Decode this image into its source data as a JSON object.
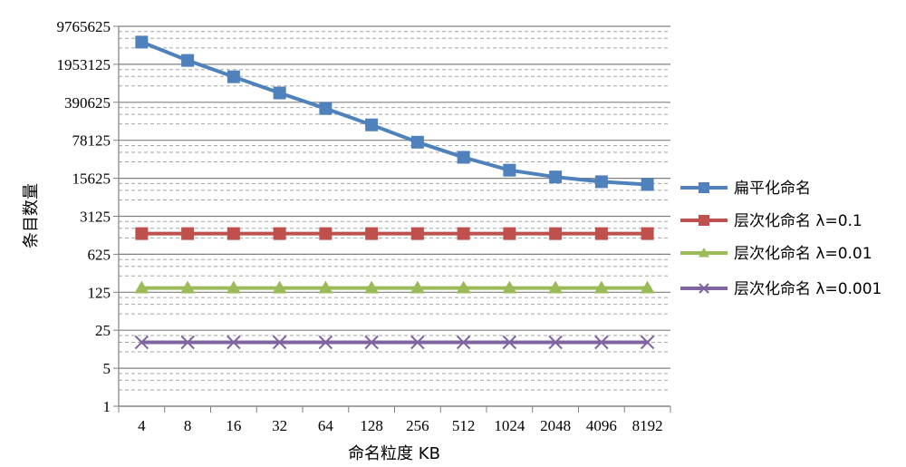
{
  "chart_data": {
    "type": "line",
    "xlabel": "命名粒度 KB",
    "ylabel": "条目数量",
    "y_scale": "log5",
    "ylim": [
      1,
      9765625
    ],
    "y_ticks": [
      "1",
      "5",
      "25",
      "125",
      "625",
      "3125",
      "15625",
      "78125",
      "390625",
      "1953125",
      "9765625"
    ],
    "categories": [
      "4",
      "8",
      "16",
      "32",
      "64",
      "128",
      "256",
      "512",
      "1024",
      "2048",
      "4096",
      "8192"
    ],
    "grid": true,
    "legend_position": "right",
    "series": [
      {
        "name": "扁平化命名",
        "color": "#4f81bd",
        "marker": "square",
        "values": [
          5000000,
          2300000,
          1150000,
          580000,
          300000,
          150000,
          72000,
          38000,
          22000,
          16500,
          13500,
          12000
        ]
      },
      {
        "name": "层次化命名 λ=0.1",
        "color": "#c0504d",
        "marker": "square",
        "values": [
          1500,
          1500,
          1500,
          1500,
          1500,
          1500,
          1500,
          1500,
          1500,
          1500,
          1500,
          1500
        ]
      },
      {
        "name": "层次化命名 λ=0.01",
        "color": "#9bbb59",
        "marker": "triangle",
        "values": [
          150,
          150,
          150,
          150,
          150,
          150,
          150,
          150,
          150,
          150,
          150,
          150
        ]
      },
      {
        "name": "层次化命名 λ=0.001",
        "color": "#8064a2",
        "marker": "x",
        "values": [
          15,
          15,
          15,
          15,
          15,
          15,
          15,
          15,
          15,
          15,
          15,
          15
        ]
      }
    ]
  }
}
